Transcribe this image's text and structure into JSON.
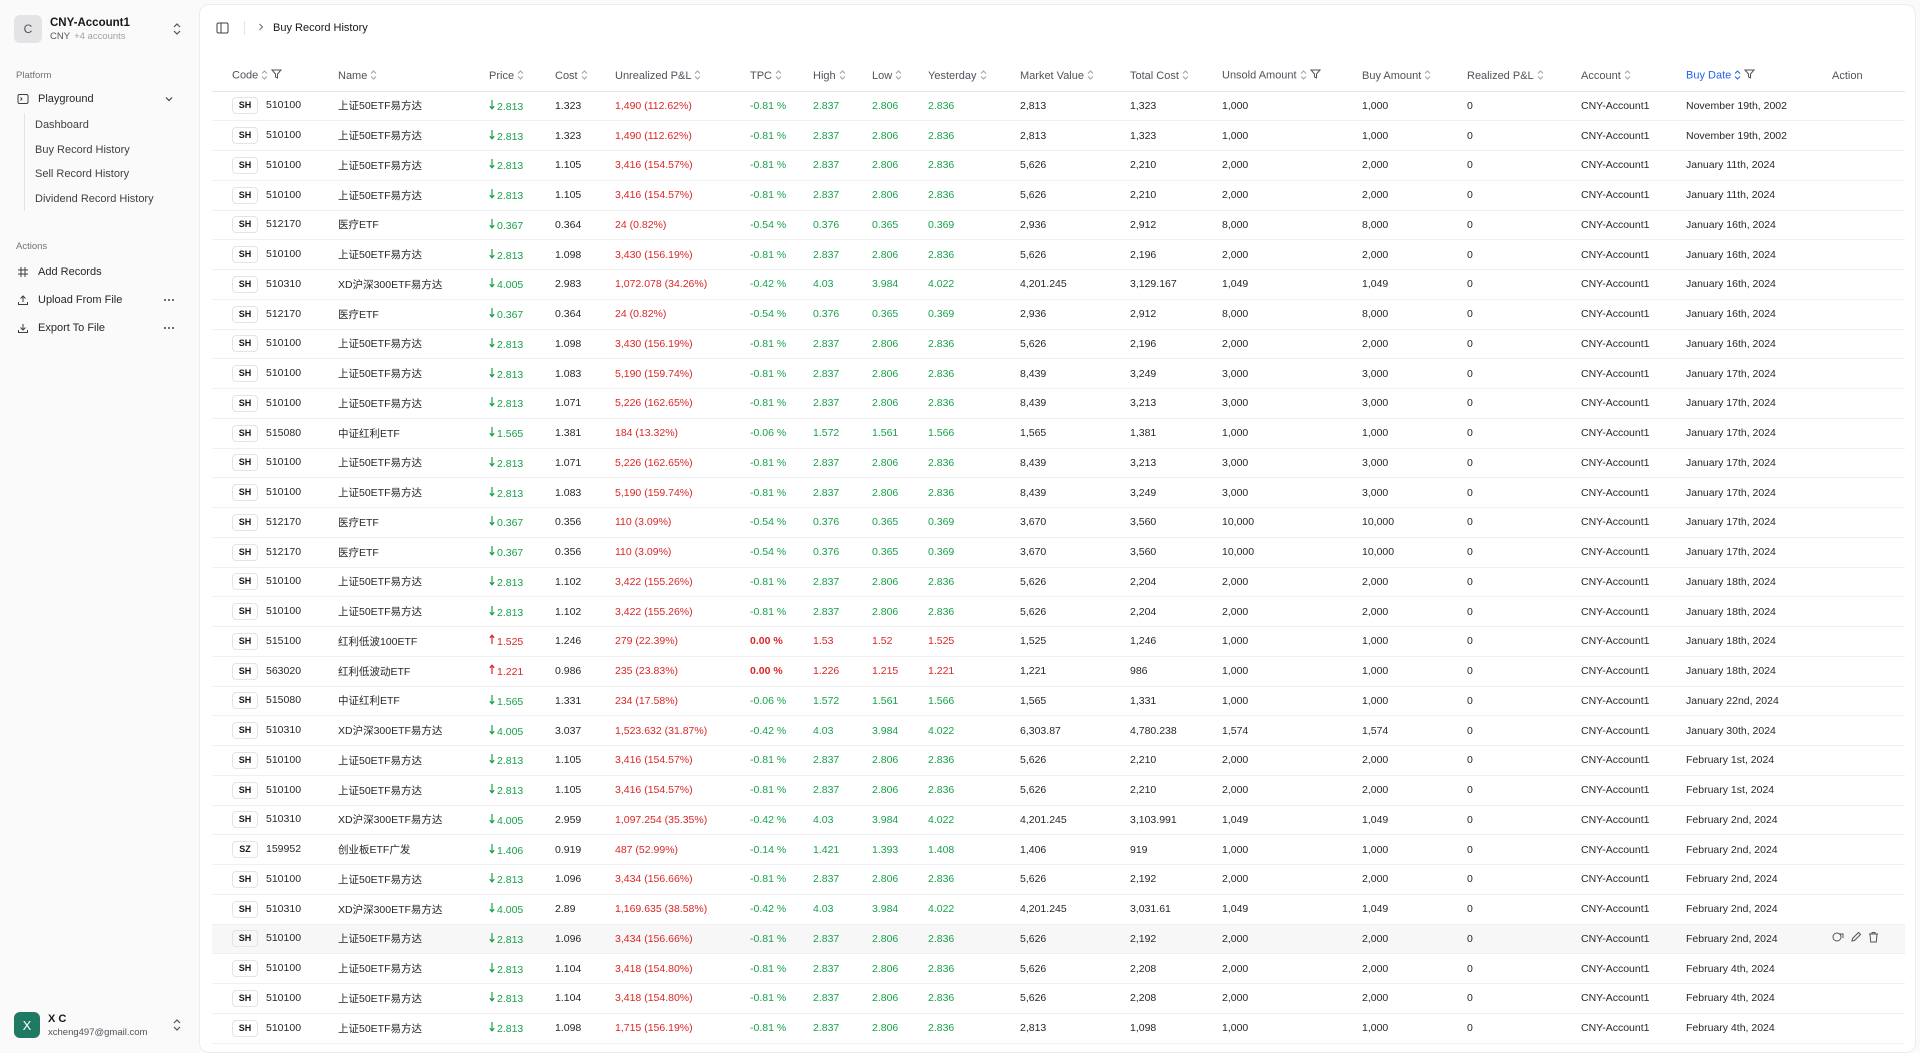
{
  "sidebar": {
    "account": {
      "initial": "C",
      "name": "CNY-Account1",
      "currency": "CNY",
      "extra": "+4 accounts"
    },
    "platform_label": "Platform",
    "playground_label": "Playground",
    "sub_items": [
      "Dashboard",
      "Buy Record History",
      "Sell Record History",
      "Dividend Record History"
    ],
    "actions_label": "Actions",
    "actions": [
      {
        "label": "Add Records",
        "icon": "grid-icon"
      },
      {
        "label": "Upload From File",
        "icon": "upload-icon"
      },
      {
        "label": "Export To File",
        "icon": "download-icon"
      }
    ],
    "user": {
      "initial": "X",
      "name": "X C",
      "email": "xcheng497@gmail.com"
    }
  },
  "breadcrumb": {
    "current": "Buy Record History"
  },
  "table": {
    "columns": [
      "Code",
      "Name",
      "Price",
      "Cost",
      "Unrealized P&L",
      "TPC",
      "High",
      "Low",
      "Yesterday",
      "Market Value",
      "Total Cost",
      "Unsold Amount",
      "Buy Amount",
      "Realized P&L",
      "Account",
      "Buy Date",
      "Action"
    ],
    "rows": [
      {
        "mkt": "SH",
        "code": "510100",
        "name": "上证50ETF易方达",
        "dir": "down",
        "price": "2.813",
        "cost": "1.323",
        "upl": "1,490 (112.62%)",
        "tpc": "-0.81 %",
        "high": "2.837",
        "low": "2.806",
        "yest": "2.836",
        "mv": "2,813",
        "tc": "1,323",
        "unsold": "1,000",
        "buy": "1,000",
        "rpl": "0",
        "acct": "CNY-Account1",
        "date": "November 19th, 2002"
      },
      {
        "mkt": "SH",
        "code": "510100",
        "name": "上证50ETF易方达",
        "dir": "down",
        "price": "2.813",
        "cost": "1.323",
        "upl": "1,490 (112.62%)",
        "tpc": "-0.81 %",
        "high": "2.837",
        "low": "2.806",
        "yest": "2.836",
        "mv": "2,813",
        "tc": "1,323",
        "unsold": "1,000",
        "buy": "1,000",
        "rpl": "0",
        "acct": "CNY-Account1",
        "date": "November 19th, 2002"
      },
      {
        "mkt": "SH",
        "code": "510100",
        "name": "上证50ETF易方达",
        "dir": "down",
        "price": "2.813",
        "cost": "1.105",
        "upl": "3,416 (154.57%)",
        "tpc": "-0.81 %",
        "high": "2.837",
        "low": "2.806",
        "yest": "2.836",
        "mv": "5,626",
        "tc": "2,210",
        "unsold": "2,000",
        "buy": "2,000",
        "rpl": "0",
        "acct": "CNY-Account1",
        "date": "January 11th, 2024"
      },
      {
        "mkt": "SH",
        "code": "510100",
        "name": "上证50ETF易方达",
        "dir": "down",
        "price": "2.813",
        "cost": "1.105",
        "upl": "3,416 (154.57%)",
        "tpc": "-0.81 %",
        "high": "2.837",
        "low": "2.806",
        "yest": "2.836",
        "mv": "5,626",
        "tc": "2,210",
        "unsold": "2,000",
        "buy": "2,000",
        "rpl": "0",
        "acct": "CNY-Account1",
        "date": "January 11th, 2024"
      },
      {
        "mkt": "SH",
        "code": "512170",
        "name": "医疗ETF",
        "dir": "down",
        "price": "0.367",
        "cost": "0.364",
        "upl": "24 (0.82%)",
        "tpc": "-0.54 %",
        "high": "0.376",
        "low": "0.365",
        "yest": "0.369",
        "mv": "2,936",
        "tc": "2,912",
        "unsold": "8,000",
        "buy": "8,000",
        "rpl": "0",
        "acct": "CNY-Account1",
        "date": "January 16th, 2024"
      },
      {
        "mkt": "SH",
        "code": "510100",
        "name": "上证50ETF易方达",
        "dir": "down",
        "price": "2.813",
        "cost": "1.098",
        "upl": "3,430 (156.19%)",
        "tpc": "-0.81 %",
        "high": "2.837",
        "low": "2.806",
        "yest": "2.836",
        "mv": "5,626",
        "tc": "2,196",
        "unsold": "2,000",
        "buy": "2,000",
        "rpl": "0",
        "acct": "CNY-Account1",
        "date": "January 16th, 2024"
      },
      {
        "mkt": "SH",
        "code": "510310",
        "name": "XD沪深300ETF易方达",
        "dir": "down",
        "price": "4.005",
        "cost": "2.983",
        "upl": "1,072.078 (34.26%)",
        "tpc": "-0.42 %",
        "high": "4.03",
        "low": "3.984",
        "yest": "4.022",
        "mv": "4,201.245",
        "tc": "3,129.167",
        "unsold": "1,049",
        "buy": "1,049",
        "rpl": "0",
        "acct": "CNY-Account1",
        "date": "January 16th, 2024"
      },
      {
        "mkt": "SH",
        "code": "512170",
        "name": "医疗ETF",
        "dir": "down",
        "price": "0.367",
        "cost": "0.364",
        "upl": "24 (0.82%)",
        "tpc": "-0.54 %",
        "high": "0.376",
        "low": "0.365",
        "yest": "0.369",
        "mv": "2,936",
        "tc": "2,912",
        "unsold": "8,000",
        "buy": "8,000",
        "rpl": "0",
        "acct": "CNY-Account1",
        "date": "January 16th, 2024"
      },
      {
        "mkt": "SH",
        "code": "510100",
        "name": "上证50ETF易方达",
        "dir": "down",
        "price": "2.813",
        "cost": "1.098",
        "upl": "3,430 (156.19%)",
        "tpc": "-0.81 %",
        "high": "2.837",
        "low": "2.806",
        "yest": "2.836",
        "mv": "5,626",
        "tc": "2,196",
        "unsold": "2,000",
        "buy": "2,000",
        "rpl": "0",
        "acct": "CNY-Account1",
        "date": "January 16th, 2024"
      },
      {
        "mkt": "SH",
        "code": "510100",
        "name": "上证50ETF易方达",
        "dir": "down",
        "price": "2.813",
        "cost": "1.083",
        "upl": "5,190 (159.74%)",
        "tpc": "-0.81 %",
        "high": "2.837",
        "low": "2.806",
        "yest": "2.836",
        "mv": "8,439",
        "tc": "3,249",
        "unsold": "3,000",
        "buy": "3,000",
        "rpl": "0",
        "acct": "CNY-Account1",
        "date": "January 17th, 2024"
      },
      {
        "mkt": "SH",
        "code": "510100",
        "name": "上证50ETF易方达",
        "dir": "down",
        "price": "2.813",
        "cost": "1.071",
        "upl": "5,226 (162.65%)",
        "tpc": "-0.81 %",
        "high": "2.837",
        "low": "2.806",
        "yest": "2.836",
        "mv": "8,439",
        "tc": "3,213",
        "unsold": "3,000",
        "buy": "3,000",
        "rpl": "0",
        "acct": "CNY-Account1",
        "date": "January 17th, 2024"
      },
      {
        "mkt": "SH",
        "code": "515080",
        "name": "中证红利ETF",
        "dir": "down",
        "price": "1.565",
        "cost": "1.381",
        "upl": "184 (13.32%)",
        "tpc": "-0.06 %",
        "high": "1.572",
        "low": "1.561",
        "yest": "1.566",
        "mv": "1,565",
        "tc": "1,381",
        "unsold": "1,000",
        "buy": "1,000",
        "rpl": "0",
        "acct": "CNY-Account1",
        "date": "January 17th, 2024"
      },
      {
        "mkt": "SH",
        "code": "510100",
        "name": "上证50ETF易方达",
        "dir": "down",
        "price": "2.813",
        "cost": "1.071",
        "upl": "5,226 (162.65%)",
        "tpc": "-0.81 %",
        "high": "2.837",
        "low": "2.806",
        "yest": "2.836",
        "mv": "8,439",
        "tc": "3,213",
        "unsold": "3,000",
        "buy": "3,000",
        "rpl": "0",
        "acct": "CNY-Account1",
        "date": "January 17th, 2024"
      },
      {
        "mkt": "SH",
        "code": "510100",
        "name": "上证50ETF易方达",
        "dir": "down",
        "price": "2.813",
        "cost": "1.083",
        "upl": "5,190 (159.74%)",
        "tpc": "-0.81 %",
        "high": "2.837",
        "low": "2.806",
        "yest": "2.836",
        "mv": "8,439",
        "tc": "3,249",
        "unsold": "3,000",
        "buy": "3,000",
        "rpl": "0",
        "acct": "CNY-Account1",
        "date": "January 17th, 2024"
      },
      {
        "mkt": "SH",
        "code": "512170",
        "name": "医疗ETF",
        "dir": "down",
        "price": "0.367",
        "cost": "0.356",
        "upl": "110 (3.09%)",
        "tpc": "-0.54 %",
        "high": "0.376",
        "low": "0.365",
        "yest": "0.369",
        "mv": "3,670",
        "tc": "3,560",
        "unsold": "10,000",
        "buy": "10,000",
        "rpl": "0",
        "acct": "CNY-Account1",
        "date": "January 17th, 2024"
      },
      {
        "mkt": "SH",
        "code": "512170",
        "name": "医疗ETF",
        "dir": "down",
        "price": "0.367",
        "cost": "0.356",
        "upl": "110 (3.09%)",
        "tpc": "-0.54 %",
        "high": "0.376",
        "low": "0.365",
        "yest": "0.369",
        "mv": "3,670",
        "tc": "3,560",
        "unsold": "10,000",
        "buy": "10,000",
        "rpl": "0",
        "acct": "CNY-Account1",
        "date": "January 17th, 2024"
      },
      {
        "mkt": "SH",
        "code": "510100",
        "name": "上证50ETF易方达",
        "dir": "down",
        "price": "2.813",
        "cost": "1.102",
        "upl": "3,422 (155.26%)",
        "tpc": "-0.81 %",
        "high": "2.837",
        "low": "2.806",
        "yest": "2.836",
        "mv": "5,626",
        "tc": "2,204",
        "unsold": "2,000",
        "buy": "2,000",
        "rpl": "0",
        "acct": "CNY-Account1",
        "date": "January 18th, 2024"
      },
      {
        "mkt": "SH",
        "code": "510100",
        "name": "上证50ETF易方达",
        "dir": "down",
        "price": "2.813",
        "cost": "1.102",
        "upl": "3,422 (155.26%)",
        "tpc": "-0.81 %",
        "high": "2.837",
        "low": "2.806",
        "yest": "2.836",
        "mv": "5,626",
        "tc": "2,204",
        "unsold": "2,000",
        "buy": "2,000",
        "rpl": "0",
        "acct": "CNY-Account1",
        "date": "January 18th, 2024"
      },
      {
        "mkt": "SH",
        "code": "515100",
        "name": "红利低波100ETF",
        "dir": "up",
        "price": "1.525",
        "cost": "1.246",
        "upl": "279 (22.39%)",
        "tpc": "0.00 %",
        "high": "1.53",
        "low": "1.52",
        "yest": "1.525",
        "mv": "1,525",
        "tc": "1,246",
        "unsold": "1,000",
        "buy": "1,000",
        "rpl": "0",
        "acct": "CNY-Account1",
        "date": "January 18th, 2024"
      },
      {
        "mkt": "SH",
        "code": "563020",
        "name": "红利低波动ETF",
        "dir": "up",
        "price": "1.221",
        "cost": "0.986",
        "upl": "235 (23.83%)",
        "tpc": "0.00 %",
        "high": "1.226",
        "low": "1.215",
        "yest": "1.221",
        "mv": "1,221",
        "tc": "986",
        "unsold": "1,000",
        "buy": "1,000",
        "rpl": "0",
        "acct": "CNY-Account1",
        "date": "January 18th, 2024"
      },
      {
        "mkt": "SH",
        "code": "515080",
        "name": "中证红利ETF",
        "dir": "down",
        "price": "1.565",
        "cost": "1.331",
        "upl": "234 (17.58%)",
        "tpc": "-0.06 %",
        "high": "1.572",
        "low": "1.561",
        "yest": "1.566",
        "mv": "1,565",
        "tc": "1,331",
        "unsold": "1,000",
        "buy": "1,000",
        "rpl": "0",
        "acct": "CNY-Account1",
        "date": "January 22nd, 2024"
      },
      {
        "mkt": "SH",
        "code": "510310",
        "name": "XD沪深300ETF易方达",
        "dir": "down",
        "price": "4.005",
        "cost": "3.037",
        "upl": "1,523.632 (31.87%)",
        "tpc": "-0.42 %",
        "high": "4.03",
        "low": "3.984",
        "yest": "4.022",
        "mv": "6,303.87",
        "tc": "4,780.238",
        "unsold": "1,574",
        "buy": "1,574",
        "rpl": "0",
        "acct": "CNY-Account1",
        "date": "January 30th, 2024"
      },
      {
        "mkt": "SH",
        "code": "510100",
        "name": "上证50ETF易方达",
        "dir": "down",
        "price": "2.813",
        "cost": "1.105",
        "upl": "3,416 (154.57%)",
        "tpc": "-0.81 %",
        "high": "2.837",
        "low": "2.806",
        "yest": "2.836",
        "mv": "5,626",
        "tc": "2,210",
        "unsold": "2,000",
        "buy": "2,000",
        "rpl": "0",
        "acct": "CNY-Account1",
        "date": "February 1st, 2024"
      },
      {
        "mkt": "SH",
        "code": "510100",
        "name": "上证50ETF易方达",
        "dir": "down",
        "price": "2.813",
        "cost": "1.105",
        "upl": "3,416 (154.57%)",
        "tpc": "-0.81 %",
        "high": "2.837",
        "low": "2.806",
        "yest": "2.836",
        "mv": "5,626",
        "tc": "2,210",
        "unsold": "2,000",
        "buy": "2,000",
        "rpl": "0",
        "acct": "CNY-Account1",
        "date": "February 1st, 2024"
      },
      {
        "mkt": "SH",
        "code": "510310",
        "name": "XD沪深300ETF易方达",
        "dir": "down",
        "price": "4.005",
        "cost": "2.959",
        "upl": "1,097.254 (35.35%)",
        "tpc": "-0.42 %",
        "high": "4.03",
        "low": "3.984",
        "yest": "4.022",
        "mv": "4,201.245",
        "tc": "3,103.991",
        "unsold": "1,049",
        "buy": "1,049",
        "rpl": "0",
        "acct": "CNY-Account1",
        "date": "February 2nd, 2024"
      },
      {
        "mkt": "SZ",
        "code": "159952",
        "name": "创业板ETF广发",
        "dir": "down",
        "price": "1.406",
        "cost": "0.919",
        "upl": "487 (52.99%)",
        "tpc": "-0.14 %",
        "high": "1.421",
        "low": "1.393",
        "yest": "1.408",
        "mv": "1,406",
        "tc": "919",
        "unsold": "1,000",
        "buy": "1,000",
        "rpl": "0",
        "acct": "CNY-Account1",
        "date": "February 2nd, 2024"
      },
      {
        "mkt": "SH",
        "code": "510100",
        "name": "上证50ETF易方达",
        "dir": "down",
        "price": "2.813",
        "cost": "1.096",
        "upl": "3,434 (156.66%)",
        "tpc": "-0.81 %",
        "high": "2.837",
        "low": "2.806",
        "yest": "2.836",
        "mv": "5,626",
        "tc": "2,192",
        "unsold": "2,000",
        "buy": "2,000",
        "rpl": "0",
        "acct": "CNY-Account1",
        "date": "February 2nd, 2024"
      },
      {
        "mkt": "SH",
        "code": "510310",
        "name": "XD沪深300ETF易方达",
        "dir": "down",
        "price": "4.005",
        "cost": "2.89",
        "upl": "1,169.635 (38.58%)",
        "tpc": "-0.42 %",
        "high": "4.03",
        "low": "3.984",
        "yest": "4.022",
        "mv": "4,201.245",
        "tc": "3,031.61",
        "unsold": "1,049",
        "buy": "1,049",
        "rpl": "0",
        "acct": "CNY-Account1",
        "date": "February 2nd, 2024"
      },
      {
        "mkt": "SH",
        "code": "510100",
        "name": "上证50ETF易方达",
        "dir": "down",
        "price": "2.813",
        "cost": "1.096",
        "upl": "3,434 (156.66%)",
        "tpc": "-0.81 %",
        "high": "2.837",
        "low": "2.806",
        "yest": "2.836",
        "mv": "5,626",
        "tc": "2,192",
        "unsold": "2,000",
        "buy": "2,000",
        "rpl": "0",
        "acct": "CNY-Account1",
        "date": "February 2nd, 2024",
        "hover": true
      },
      {
        "mkt": "SH",
        "code": "510100",
        "name": "上证50ETF易方达",
        "dir": "down",
        "price": "2.813",
        "cost": "1.104",
        "upl": "3,418 (154.80%)",
        "tpc": "-0.81 %",
        "high": "2.837",
        "low": "2.806",
        "yest": "2.836",
        "mv": "5,626",
        "tc": "2,208",
        "unsold": "2,000",
        "buy": "2,000",
        "rpl": "0",
        "acct": "CNY-Account1",
        "date": "February 4th, 2024"
      },
      {
        "mkt": "SH",
        "code": "510100",
        "name": "上证50ETF易方达",
        "dir": "down",
        "price": "2.813",
        "cost": "1.104",
        "upl": "3,418 (154.80%)",
        "tpc": "-0.81 %",
        "high": "2.837",
        "low": "2.806",
        "yest": "2.836",
        "mv": "5,626",
        "tc": "2,208",
        "unsold": "2,000",
        "buy": "2,000",
        "rpl": "0",
        "acct": "CNY-Account1",
        "date": "February 4th, 2024"
      },
      {
        "mkt": "SH",
        "code": "510100",
        "name": "上证50ETF易方达",
        "dir": "down",
        "price": "2.813",
        "cost": "1.098",
        "upl": "1,715 (156.19%)",
        "tpc": "-0.81 %",
        "high": "2.837",
        "low": "2.806",
        "yest": "2.836",
        "mv": "2,813",
        "tc": "1,098",
        "unsold": "1,000",
        "buy": "1,000",
        "rpl": "0",
        "acct": "CNY-Account1",
        "date": "February 4th, 2024"
      }
    ]
  },
  "colors": {
    "down": "#16a34a",
    "up": "#dc2626",
    "active_sort": "#2563eb"
  }
}
